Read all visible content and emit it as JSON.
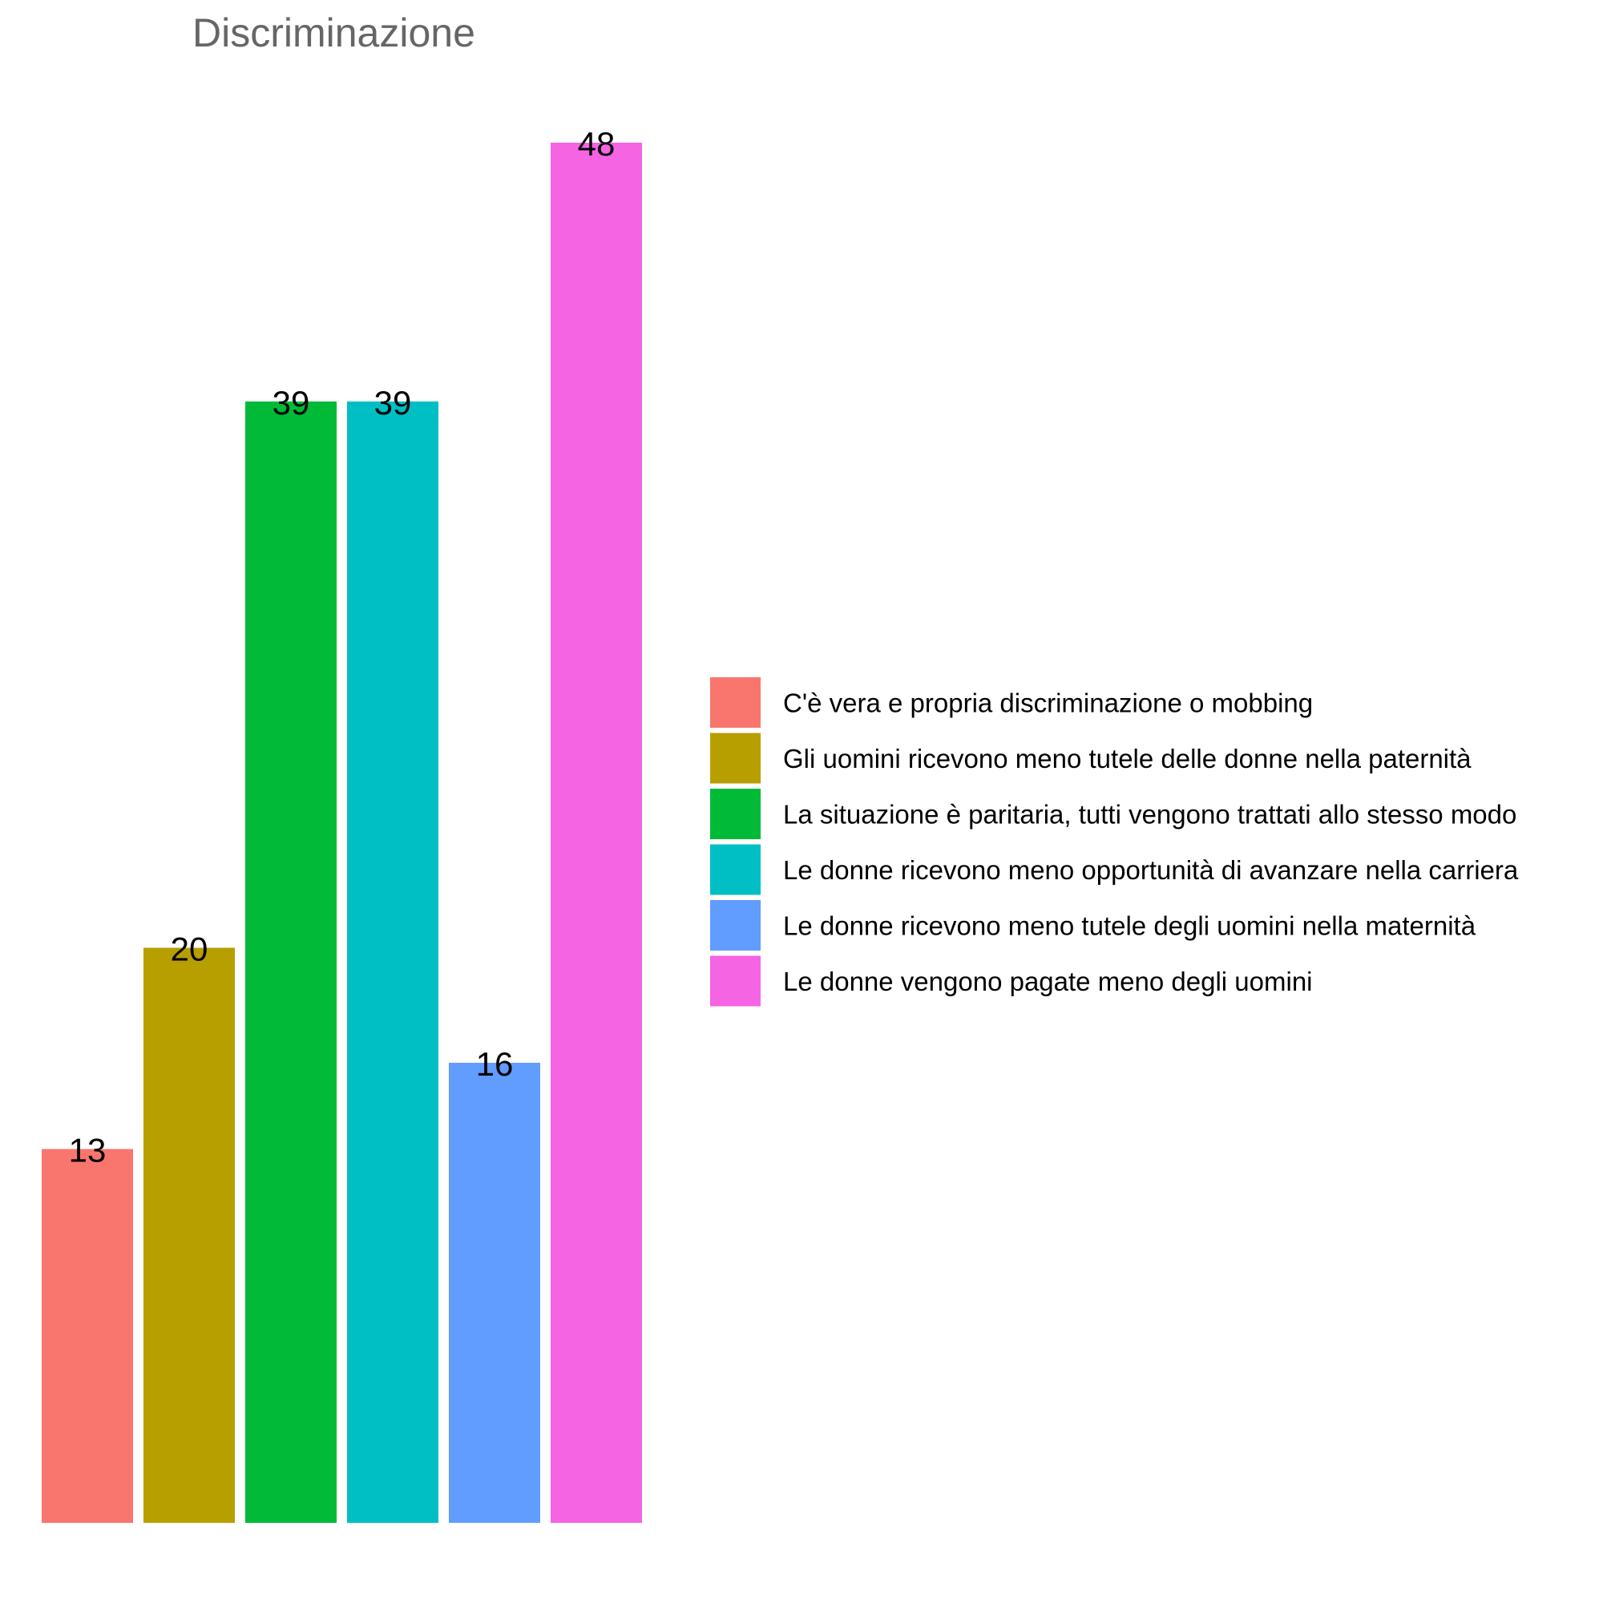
{
  "chart_data": {
    "type": "bar",
    "title": "Discriminazione",
    "xlabel": "",
    "ylabel": "",
    "ylim": [
      0,
      48
    ],
    "grid": false,
    "legend_position": "right",
    "categories": [
      "C'è vera e propria discriminazione o mobbing",
      "Gli uomini ricevono meno tutele delle donne nella paternità",
      "La situazione è paritaria, tutti vengono trattati allo stesso modo",
      "Le donne ricevono meno opportunità di avanzare nella carriera",
      "Le donne ricevono meno tutele degli uomini nella maternità",
      "Le donne vengono pagate meno degli uomini"
    ],
    "values": [
      13,
      20,
      39,
      39,
      16,
      48
    ],
    "value_labels": [
      "13",
      "20",
      "39",
      "39",
      "16",
      "48"
    ],
    "colors": [
      "#F8766D",
      "#B79F00",
      "#00BA38",
      "#00BFC4",
      "#619CFF",
      "#F564E3"
    ]
  }
}
